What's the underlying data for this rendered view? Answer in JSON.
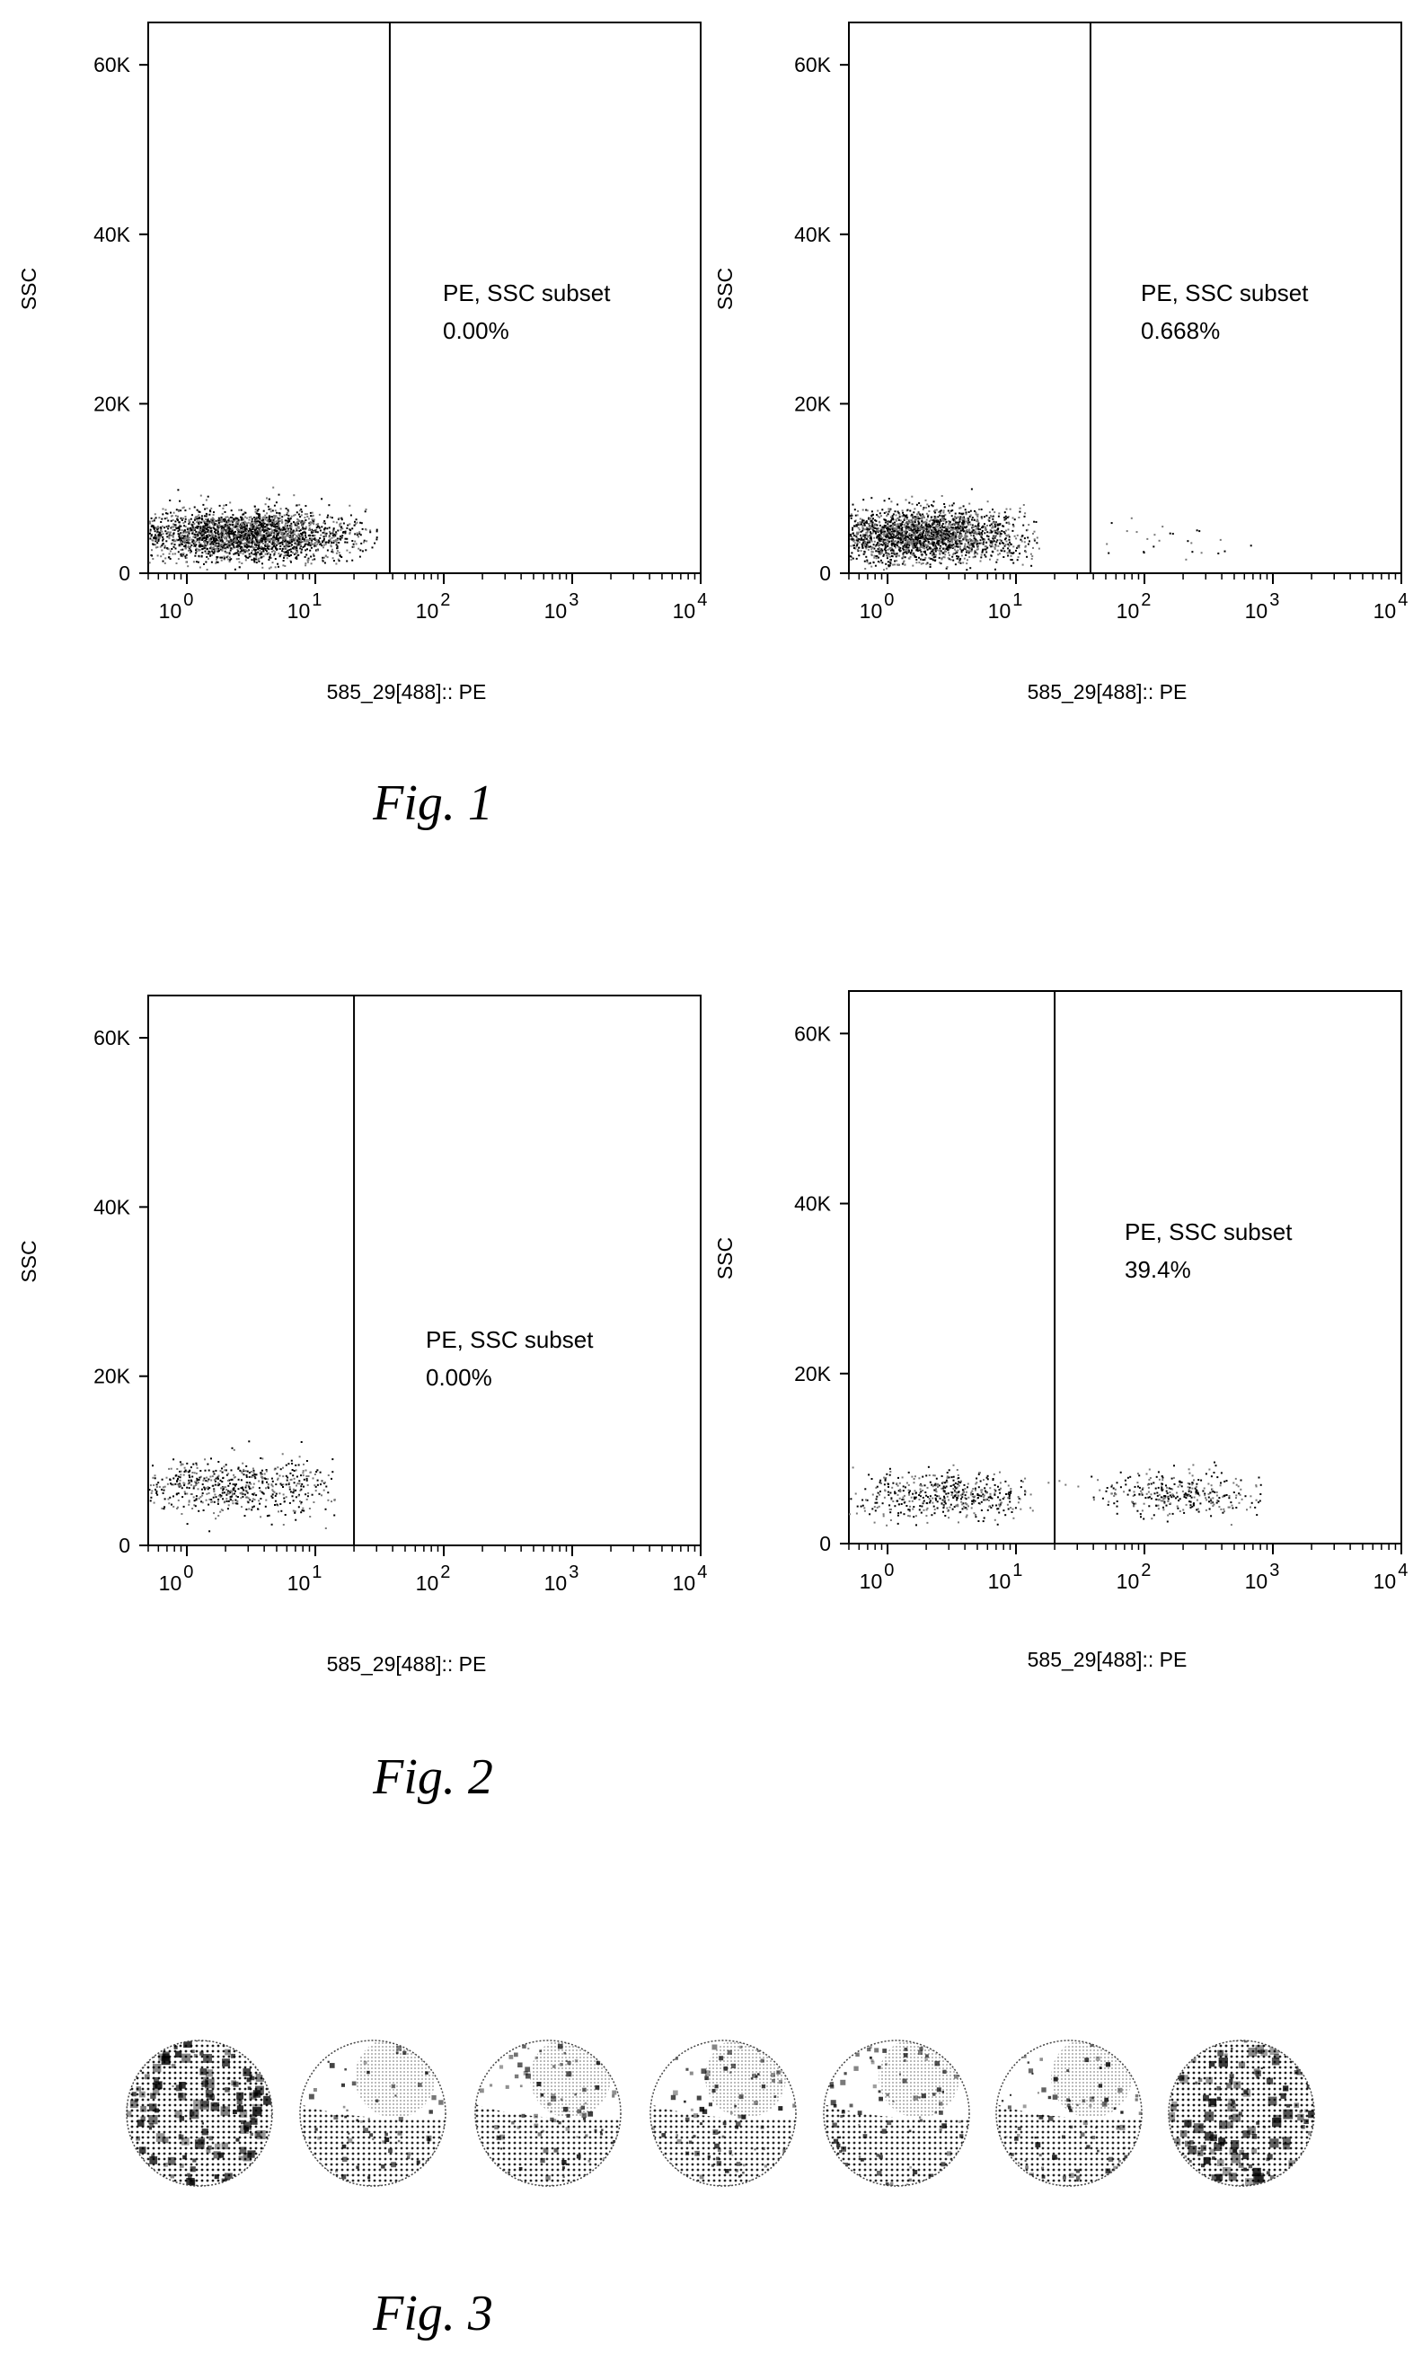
{
  "figures": [
    {
      "caption": "Fig. 1",
      "panels": [
        {
          "gate_name": "PE, SSC subset",
          "gate_pct": "0.00%"
        },
        {
          "gate_name": "PE, SSC subset",
          "gate_pct": "0.668%"
        }
      ]
    },
    {
      "caption": "Fig. 2",
      "panels": [
        {
          "gate_name": "PE, SSC subset",
          "gate_pct": "0.00%"
        },
        {
          "gate_name": "PE, SSC subset",
          "gate_pct": "39.4%"
        }
      ]
    },
    {
      "caption": "Fig. 3",
      "wells": [
        {
          "label": "",
          "intensity": 0.9
        },
        {
          "label": "",
          "intensity": 0.35
        },
        {
          "label": "",
          "intensity": 0.5
        },
        {
          "label": "",
          "intensity": 0.5
        },
        {
          "label": "",
          "intensity": 0.5
        },
        {
          "label": "",
          "intensity": 0.5
        },
        {
          "label": "",
          "intensity": 0.8
        }
      ]
    }
  ],
  "chart_data": [
    {
      "type": "scatter",
      "figure": "Fig. 1",
      "panel": "left",
      "xlabel": "585_29[488]:: PE",
      "ylabel": "SSC",
      "x_scale": "log",
      "xlim": [
        0.5,
        10000
      ],
      "ylim": [
        0,
        65000
      ],
      "x_ticks": [
        "10^0",
        "10^1",
        "10^2",
        "10^3",
        "10^4"
      ],
      "y_ticks": [
        "0",
        "20K",
        "40K",
        "60K"
      ],
      "gate_x": 38,
      "gate_label": "PE, SSC subset",
      "gate_percent": 0.0,
      "populations": [
        {
          "x_center": 2.8,
          "x_log_spread": 0.45,
          "y_center": 4500,
          "y_spread": 1500,
          "count": 2600,
          "x_max": 30
        }
      ]
    },
    {
      "type": "scatter",
      "figure": "Fig. 1",
      "panel": "right",
      "xlabel": "585_29[488]:: PE",
      "ylabel": "SSC",
      "x_scale": "log",
      "xlim": [
        0.5,
        10000
      ],
      "ylim": [
        0,
        65000
      ],
      "x_ticks": [
        "10^0",
        "10^1",
        "10^2",
        "10^3",
        "10^4"
      ],
      "y_ticks": [
        "0",
        "20K",
        "40K",
        "60K"
      ],
      "gate_x": 38,
      "gate_label": "PE, SSC subset",
      "gate_percent": 0.668,
      "populations": [
        {
          "x_center": 1.8,
          "x_log_spread": 0.4,
          "y_center": 4500,
          "y_spread": 1600,
          "count": 2400,
          "x_max": 15
        },
        {
          "x_center": 180,
          "x_log_spread": 0.35,
          "y_center": 4000,
          "y_spread": 1500,
          "count": 28,
          "x_max": 800
        }
      ]
    },
    {
      "type": "scatter",
      "figure": "Fig. 2",
      "panel": "left",
      "xlabel": "585_29[488]:: PE",
      "ylabel": "SSC",
      "x_scale": "log",
      "xlim": [
        0.5,
        10000
      ],
      "ylim": [
        0,
        65000
      ],
      "x_ticks": [
        "10^0",
        "10^1",
        "10^2",
        "10^3",
        "10^4"
      ],
      "y_ticks": [
        "0",
        "20K",
        "40K",
        "60K"
      ],
      "gate_x": 20,
      "gate_label": "PE, SSC subset",
      "gate_percent": 0.0,
      "populations": [
        {
          "x_center": 2.5,
          "x_log_spread": 0.45,
          "y_center": 7000,
          "y_spread": 1700,
          "count": 650,
          "x_max": 14
        }
      ]
    },
    {
      "type": "scatter",
      "figure": "Fig. 2",
      "panel": "right",
      "xlabel": "585_29[488]:: PE",
      "ylabel": "SSC",
      "x_scale": "log",
      "xlim": [
        0.5,
        10000
      ],
      "ylim": [
        0,
        65000
      ],
      "x_ticks": [
        "10^0",
        "10^1",
        "10^2",
        "10^3",
        "10^4"
      ],
      "y_ticks": [
        "0",
        "20K",
        "40K",
        "60K"
      ],
      "gate_x": 20,
      "gate_label": "PE, SSC subset",
      "gate_percent": 39.4,
      "populations": [
        {
          "x_center": 3.0,
          "x_log_spread": 0.4,
          "y_center": 5800,
          "y_spread": 1400,
          "count": 520,
          "x_max": 13
        },
        {
          "x_center": 180,
          "x_log_spread": 0.35,
          "y_center": 6000,
          "y_spread": 1300,
          "count": 340,
          "x_max": 800
        }
      ]
    }
  ]
}
